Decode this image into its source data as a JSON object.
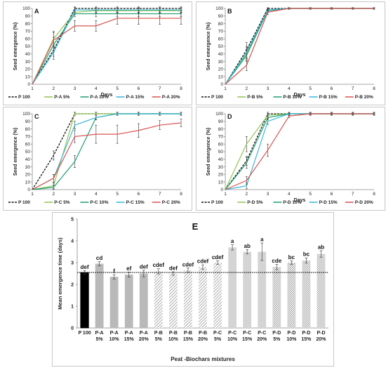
{
  "chart_data": [
    {
      "panel": "A",
      "type": "line",
      "ylabel": "Seed emergence (%)",
      "xlabel": "Days",
      "x": [
        1,
        2,
        3,
        4,
        5,
        6,
        7,
        8
      ],
      "ylim": [
        0,
        100
      ],
      "yticks": [
        0,
        10,
        20,
        30,
        40,
        50,
        60,
        70,
        80,
        90,
        100
      ],
      "series": [
        {
          "name": "P 100",
          "color": "#111111",
          "dash": true,
          "values": [
            0,
            45,
            100,
            100,
            100,
            100,
            100,
            100
          ],
          "err": [
            0,
            8,
            2,
            2,
            2,
            2,
            2,
            2
          ]
        },
        {
          "name": "P-A 5%",
          "color": "#92c353",
          "dash": false,
          "values": [
            0,
            60,
            95,
            97,
            97,
            97,
            97,
            97
          ],
          "err": [
            0,
            10,
            3,
            3,
            3,
            3,
            3,
            3
          ]
        },
        {
          "name": "P-A 10%",
          "color": "#1f9e76",
          "dash": false,
          "values": [
            0,
            52,
            93,
            93,
            93,
            93,
            93,
            93
          ],
          "err": [
            0,
            10,
            4,
            4,
            4,
            4,
            4,
            4
          ]
        },
        {
          "name": "P-A 15%",
          "color": "#3ab7d6",
          "dash": false,
          "values": [
            0,
            42,
            98,
            98,
            98,
            98,
            98,
            98
          ],
          "err": [
            0,
            9,
            3,
            3,
            3,
            3,
            3,
            3
          ]
        },
        {
          "name": "P-A 20%",
          "color": "#d9534f",
          "dash": false,
          "values": [
            0,
            58,
            77,
            77,
            87,
            87,
            87,
            87
          ],
          "err": [
            0,
            10,
            7,
            7,
            8,
            8,
            8,
            8
          ]
        }
      ]
    },
    {
      "panel": "B",
      "type": "line",
      "ylabel": "Seed emergence (%)",
      "xlabel": "Days",
      "x": [
        1,
        2,
        3,
        4,
        5,
        6,
        7,
        8
      ],
      "ylim": [
        0,
        100
      ],
      "yticks": [
        0,
        10,
        20,
        30,
        40,
        50,
        60,
        70,
        80,
        90,
        100
      ],
      "series": [
        {
          "name": "P 100",
          "color": "#111111",
          "dash": true,
          "values": [
            0,
            45,
            100,
            100,
            100,
            100,
            100,
            100
          ],
          "err": [
            0,
            10,
            1,
            1,
            1,
            1,
            1,
            1
          ]
        },
        {
          "name": "P-B 5%",
          "color": "#92c353",
          "dash": false,
          "values": [
            0,
            40,
            97,
            100,
            100,
            100,
            100,
            100
          ],
          "err": [
            0,
            8,
            2,
            1,
            1,
            1,
            1,
            1
          ]
        },
        {
          "name": "P-B 10%",
          "color": "#1f9e76",
          "dash": false,
          "values": [
            0,
            38,
            97,
            100,
            100,
            100,
            100,
            100
          ],
          "err": [
            0,
            8,
            2,
            1,
            1,
            1,
            1,
            1
          ]
        },
        {
          "name": "P-B 15%",
          "color": "#3ab7d6",
          "dash": false,
          "values": [
            0,
            42,
            98,
            100,
            100,
            100,
            100,
            100
          ],
          "err": [
            0,
            8,
            2,
            1,
            1,
            1,
            1,
            1
          ]
        },
        {
          "name": "P-B 20%",
          "color": "#d9534f",
          "dash": false,
          "values": [
            0,
            25,
            95,
            100,
            100,
            100,
            100,
            100
          ],
          "err": [
            0,
            7,
            3,
            1,
            1,
            1,
            1,
            1
          ]
        }
      ]
    },
    {
      "panel": "C",
      "type": "line",
      "ylabel": "Seed emergence (%)",
      "xlabel": "",
      "x": [
        1,
        2,
        3,
        4,
        5,
        6,
        7,
        8
      ],
      "ylim": [
        0,
        100
      ],
      "yticks": [
        0,
        10,
        20,
        30,
        40,
        50,
        60,
        70,
        80,
        90,
        100
      ],
      "series": [
        {
          "name": "P 100",
          "color": "#111111",
          "dash": true,
          "values": [
            0,
            45,
            100,
            100,
            100,
            100,
            100,
            100
          ],
          "err": [
            0,
            6,
            2,
            2,
            2,
            2,
            2,
            2
          ]
        },
        {
          "name": "P-C 5%",
          "color": "#92c353",
          "dash": false,
          "values": [
            0,
            5,
            100,
            100,
            100,
            100,
            100,
            100
          ],
          "err": [
            0,
            4,
            2,
            2,
            2,
            2,
            2,
            2
          ]
        },
        {
          "name": "P-C 10%",
          "color": "#1f9e76",
          "dash": false,
          "values": [
            0,
            3,
            37,
            95,
            100,
            100,
            100,
            100
          ],
          "err": [
            0,
            3,
            8,
            3,
            2,
            2,
            2,
            2
          ]
        },
        {
          "name": "P-C 15%",
          "color": "#3ab7d6",
          "dash": false,
          "values": [
            0,
            15,
            85,
            95,
            100,
            100,
            100,
            100
          ],
          "err": [
            0,
            5,
            5,
            3,
            2,
            2,
            2,
            2
          ]
        },
        {
          "name": "P-C 20%",
          "color": "#d9534f",
          "dash": false,
          "values": [
            0,
            15,
            70,
            73,
            73,
            78,
            85,
            88
          ],
          "err": [
            0,
            5,
            8,
            12,
            12,
            9,
            6,
            5
          ]
        }
      ]
    },
    {
      "panel": "D",
      "type": "line",
      "ylabel": "Seed emergence (%)",
      "xlabel": "Days",
      "x": [
        1,
        2,
        3,
        4,
        5,
        6,
        7,
        8
      ],
      "ylim": [
        0,
        100
      ],
      "yticks": [
        0,
        10,
        20,
        30,
        40,
        50,
        60,
        70,
        80,
        90,
        100
      ],
      "series": [
        {
          "name": "P 100",
          "color": "#111111",
          "dash": true,
          "values": [
            0,
            38,
            100,
            100,
            100,
            100,
            100,
            100
          ],
          "err": [
            0,
            6,
            2,
            2,
            2,
            2,
            2,
            2
          ]
        },
        {
          "name": "P-D 5%",
          "color": "#92c353",
          "dash": false,
          "values": [
            0,
            60,
            98,
            100,
            100,
            100,
            100,
            100
          ],
          "err": [
            0,
            10,
            2,
            1,
            1,
            1,
            1,
            1
          ]
        },
        {
          "name": "P-D 10%",
          "color": "#1f9e76",
          "dash": false,
          "values": [
            0,
            35,
            95,
            100,
            100,
            100,
            100,
            100
          ],
          "err": [
            0,
            7,
            3,
            1,
            1,
            1,
            1,
            1
          ]
        },
        {
          "name": "P-D 15%",
          "color": "#3ab7d6",
          "dash": false,
          "values": [
            0,
            5,
            90,
            100,
            100,
            100,
            100,
            100
          ],
          "err": [
            0,
            4,
            4,
            1,
            1,
            1,
            1,
            1
          ]
        },
        {
          "name": "P-D 20%",
          "color": "#d9534f",
          "dash": false,
          "values": [
            0,
            12,
            52,
            97,
            100,
            100,
            100,
            100
          ],
          "err": [
            0,
            5,
            8,
            2,
            1,
            1,
            1,
            1
          ]
        }
      ]
    },
    {
      "panel": "E",
      "type": "bar",
      "ylabel": "Mean emergence time (days)",
      "xlabel": "Peat -Biochars mixtures",
      "ylim": [
        0,
        5
      ],
      "yticks": [
        0,
        1,
        2,
        3,
        4,
        5
      ],
      "reference_line": 2.55,
      "categories": [
        {
          "line1": "P 100",
          "line2": ""
        },
        {
          "line1": "P-A",
          "line2": "5%"
        },
        {
          "line1": "P-A",
          "line2": "10%"
        },
        {
          "line1": "P-A",
          "line2": "15%"
        },
        {
          "line1": "P-A",
          "line2": "20%"
        },
        {
          "line1": "P-B",
          "line2": "5%"
        },
        {
          "line1": "P-B",
          "line2": "10%"
        },
        {
          "line1": "P-B",
          "line2": "15%"
        },
        {
          "line1": "P-B",
          "line2": "20%"
        },
        {
          "line1": "P-C",
          "line2": "5%"
        },
        {
          "line1": "P-C",
          "line2": "10%"
        },
        {
          "line1": "P-C",
          "line2": "15%"
        },
        {
          "line1": "P-C",
          "line2": "20%"
        },
        {
          "line1": "P-D",
          "line2": "5%"
        },
        {
          "line1": "P-D",
          "line2": "10%"
        },
        {
          "line1": "P-D",
          "line2": "15%"
        },
        {
          "line1": "P-D",
          "line2": "20%"
        }
      ],
      "values": [
        2.55,
        2.95,
        2.35,
        2.45,
        2.5,
        2.6,
        2.5,
        2.65,
        2.8,
        3.0,
        3.7,
        3.5,
        3.5,
        2.8,
        3.0,
        3.1,
        3.4
      ],
      "err": [
        0.08,
        0.1,
        0.1,
        0.12,
        0.15,
        0.12,
        0.08,
        0.1,
        0.1,
        0.08,
        0.12,
        0.1,
        0.4,
        0.12,
        0.08,
        0.12,
        0.15
      ],
      "letters": [
        "def",
        "cd",
        "f",
        "ef",
        "def",
        "cdef",
        "def",
        "cdef",
        "cdef",
        "cdef",
        "a",
        "ab",
        "a",
        "cde",
        "bc",
        "bc",
        "ab"
      ],
      "fills": [
        "black",
        "gray",
        "gray",
        "gray",
        "gray",
        "hatch",
        "hatch",
        "hatch",
        "hatch",
        "hatch",
        "light",
        "light",
        "light",
        "dots",
        "dots",
        "dots",
        "dots"
      ]
    }
  ]
}
